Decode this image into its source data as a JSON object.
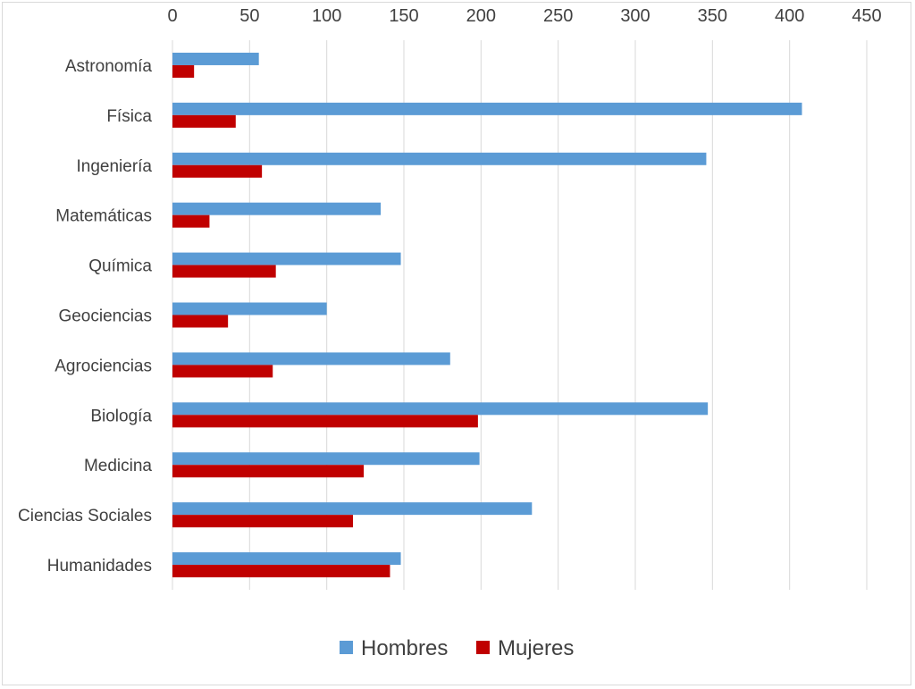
{
  "chart_data": {
    "type": "bar",
    "orientation": "horizontal",
    "title": "",
    "xlabel": "",
    "ylabel": "",
    "xlim": [
      0,
      450
    ],
    "x_ticks": [
      0,
      50,
      100,
      150,
      200,
      250,
      300,
      350,
      400,
      450
    ],
    "x_axis_position": "top",
    "grid": true,
    "legend_position": "bottom",
    "categories": [
      "Astronomía",
      "Física",
      "Ingeniería",
      "Matemáticas",
      "Química",
      "Geociencias",
      "Agrociencias",
      "Biología",
      "Medicina",
      "Ciencias Sociales",
      "Humanidades"
    ],
    "series": [
      {
        "name": "Hombres",
        "color": "#5b9bd5",
        "values": [
          56,
          408,
          346,
          135,
          148,
          100,
          180,
          347,
          199,
          233,
          148
        ]
      },
      {
        "name": "Mujeres",
        "color": "#c00000",
        "values": [
          14,
          41,
          58,
          24,
          67,
          36,
          65,
          198,
          124,
          117,
          141
        ]
      }
    ]
  }
}
